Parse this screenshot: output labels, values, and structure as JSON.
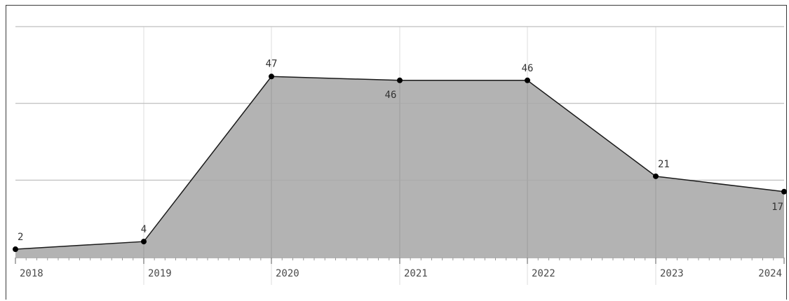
{
  "chart_data": {
    "type": "area",
    "title": "",
    "xlabel": "",
    "ylabel": "",
    "x": [
      "2018",
      "2019",
      "2020",
      "2021",
      "2022",
      "2023",
      "2024"
    ],
    "categories": [
      "2018",
      "2019",
      "2020",
      "2021",
      "2022",
      "2023",
      "2024"
    ],
    "series": [
      {
        "values": [
          2,
          4,
          47,
          46,
          46,
          21,
          17
        ]
      }
    ],
    "data_labels": [
      "2",
      "4",
      "47",
      "46",
      "46",
      "21",
      "17"
    ],
    "ylim": [
      0,
      60
    ],
    "y_gridlines": [
      20,
      40,
      60
    ],
    "y_tick_labels_shown": false,
    "grid": true,
    "legend": "none",
    "colors": {
      "area_fill": "#b3b3b3",
      "line": "#1a1a1a",
      "marker": "#000000",
      "grid": "#e3e3e3",
      "frame": "#3a3a3a"
    }
  }
}
